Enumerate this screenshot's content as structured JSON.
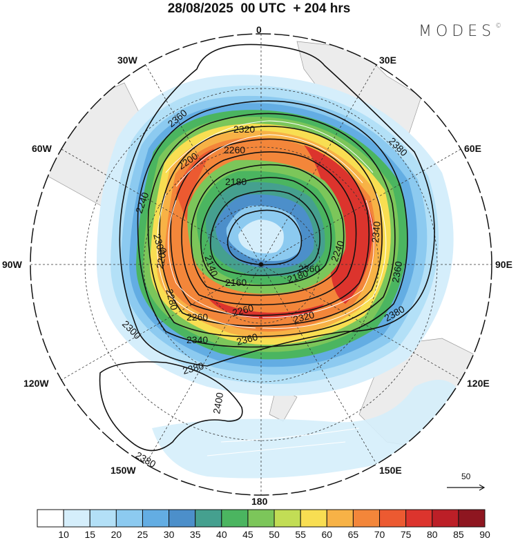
{
  "title": "28/08/2025  00 UTC  + 204 hrs",
  "brand": "MODES",
  "brand_mark": "©",
  "longitude_labels": {
    "top": "0",
    "top_left": "30W",
    "top_right": "30E",
    "upper_left": "60W",
    "upper_right": "60E",
    "left": "90W",
    "right": "90E",
    "lower_left": "120W",
    "lower_right": "120E",
    "bottom_left": "150W",
    "bottom_right": "150E",
    "bottom": "180"
  },
  "contour_labels": [
    "2360",
    "2320",
    "2260",
    "2200",
    "2180",
    "2140",
    "2160",
    "2180",
    "2240",
    "2260",
    "2260",
    "2200",
    "2280",
    "2300",
    "2240",
    "2340",
    "2360",
    "2380",
    "2340",
    "2360",
    "2320",
    "2380",
    "2400",
    "2380",
    "2300",
    "2380",
    "2360"
  ],
  "colorbar": {
    "levels": [
      "10",
      "15",
      "20",
      "25",
      "30",
      "35",
      "40",
      "45",
      "50",
      "55",
      "60",
      "65",
      "70",
      "75",
      "80",
      "85",
      "90"
    ],
    "colors": [
      "#ffffff",
      "#d5eefb",
      "#b3e0f7",
      "#8ccaf0",
      "#63ade3",
      "#4c8fca",
      "#45a08f",
      "#4bb560",
      "#7cc65a",
      "#c2dd55",
      "#f8de52",
      "#f7b246",
      "#f3863a",
      "#ec5a31",
      "#dc342d",
      "#bc1f27",
      "#8e1620"
    ]
  },
  "wind_scale": {
    "value": "50"
  },
  "style": {
    "land_color": "#ececec",
    "contour_color": "#111111",
    "vector_color": "#ffffff"
  }
}
